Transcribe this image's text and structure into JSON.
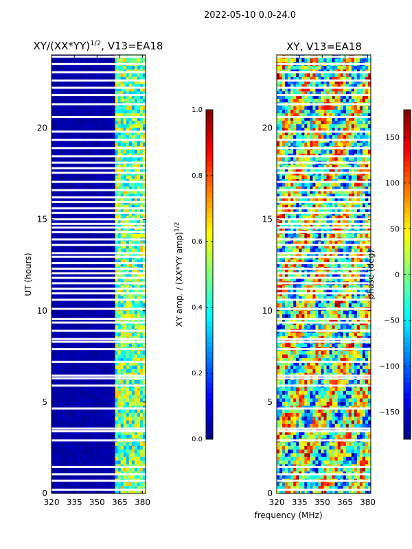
{
  "suptitle": "2022-05-10 0.0-24.0",
  "xlabel_shared": "frequency (MHz)",
  "chart_data": [
    {
      "type": "heatmap",
      "name": "amplitude-ratio",
      "title_main": "XY/(XX*YY)",
      "title_exp": "1/2",
      "title_rest": ", V13=EA18",
      "ylabel": "UT (hours)",
      "xlim": [
        320,
        382
      ],
      "ylim": [
        0,
        24
      ],
      "xticks": [
        320,
        335,
        350,
        365,
        380
      ],
      "yticks": [
        0,
        5,
        10,
        15,
        20
      ],
      "colorbar": {
        "label_main": "XY amp. / (XX*YY amp)",
        "label_exp": "1/2",
        "range": [
          0.0,
          1.0
        ],
        "ticks": [
          "0.0",
          "0.2",
          "0.4",
          "0.6",
          "0.8",
          "1.0"
        ],
        "tick_values": [
          0.0,
          0.2,
          0.4,
          0.6,
          0.8,
          1.0
        ],
        "colormap": "jet"
      },
      "band_start_mhz": 362,
      "band_note": "values near 0 below ~362 MHz, 0.3-0.7 between 362-382 MHz"
    },
    {
      "type": "heatmap",
      "name": "phase",
      "title_main": "XY, V13=EA18",
      "ylabel": "",
      "xlim": [
        320,
        382
      ],
      "ylim": [
        0,
        24
      ],
      "xticks": [
        320,
        335,
        350,
        365,
        380
      ],
      "yticks": [
        0,
        5,
        10,
        15,
        20
      ],
      "colorbar": {
        "label_main": "phase (deg)",
        "range": [
          -180,
          180
        ],
        "ticks": [
          "−150",
          "−100",
          "−50",
          "0",
          "50",
          "100",
          "150"
        ],
        "tick_values": [
          -150,
          -100,
          -50,
          0,
          50,
          100,
          150
        ],
        "colormap": "jet"
      }
    }
  ],
  "flagged_rows_ut": [
    0.2,
    0.7,
    1.05,
    1.45,
    2.9,
    3.4,
    3.55,
    4.65,
    5.9,
    6.3,
    6.45,
    7.2,
    7.9,
    8.3,
    8.45,
    8.9,
    9.35,
    9.55,
    10.1,
    10.6,
    10.95,
    11.2,
    11.5,
    11.8,
    12.05,
    12.3,
    12.6,
    12.95,
    13.15,
    13.6,
    13.9,
    14.3,
    14.55,
    14.75,
    15.0,
    15.35,
    15.6,
    15.95,
    16.2,
    16.6,
    17.05,
    17.55,
    17.8,
    18.1,
    18.45,
    18.9,
    19.35,
    19.8,
    20.6,
    21.3,
    21.8,
    22.2,
    22.6,
    23.05,
    23.5,
    23.9
  ]
}
